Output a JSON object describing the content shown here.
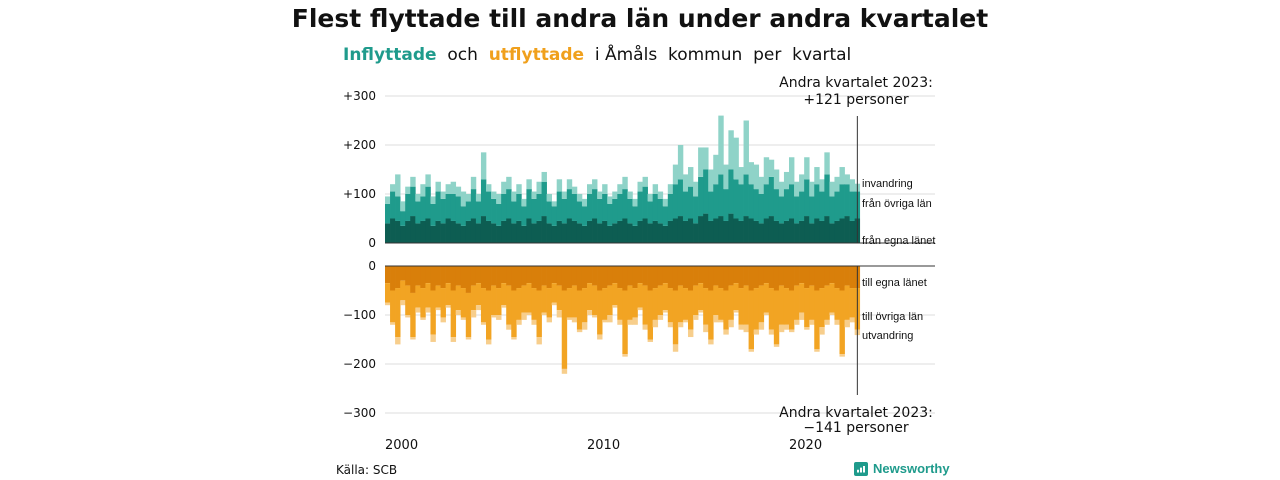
{
  "title": "Flest flyttade till andra län under andra kvartalet",
  "subtitle": {
    "in_word": "Inflyttade",
    "and_word": "och",
    "out_word": "utflyttade",
    "rest": "i Åmåls  kommun  per  kvartal"
  },
  "source": "Källa: SCB",
  "brand": "Newsworthy",
  "colors": {
    "in_local": "#0d5d52",
    "in_other": "#1f9b8c",
    "in_immigration": "#8fd3c8",
    "out_local": "#d97f0a",
    "out_other": "#f2a423",
    "out_emigration": "#f7ce8c",
    "grid": "#dddddd"
  },
  "chart_data": {
    "type": "bar",
    "stacked": true,
    "x_start": "2000 Q1",
    "x_end": "2023 Q2",
    "x_ticks": [
      "2000",
      "2010",
      "2020"
    ],
    "top_panel": {
      "y_ticks": [
        "+300",
        "+200",
        "+100",
        "0"
      ],
      "ylim": [
        0,
        300
      ],
      "series_labels": [
        "invandring",
        "från övriga län",
        "från egna länet"
      ],
      "annotation": [
        "Andra kvartalet 2023:",
        "+121 personer"
      ],
      "series": [
        {
          "name": "från egna länet",
          "values": [
            40,
            50,
            45,
            35,
            45,
            55,
            40,
            45,
            50,
            35,
            45,
            40,
            50,
            45,
            40,
            35,
            45,
            50,
            40,
            55,
            45,
            40,
            35,
            45,
            50,
            40,
            45,
            35,
            50,
            40,
            45,
            55,
            40,
            35,
            45,
            40,
            50,
            45,
            40,
            35,
            45,
            50,
            40,
            45,
            35,
            40,
            45,
            50,
            40,
            35,
            45,
            50,
            40,
            45,
            40,
            35,
            45,
            50,
            55,
            45,
            50,
            40,
            55,
            60,
            45,
            50,
            55,
            45,
            60,
            50,
            45,
            55,
            50,
            45,
            40,
            50,
            55,
            45,
            40,
            45,
            50,
            40,
            45,
            55,
            40,
            50,
            45,
            55,
            40,
            45,
            50,
            55,
            45,
            50
          ]
        },
        {
          "name": "från övriga län",
          "values": [
            40,
            55,
            50,
            30,
            55,
            60,
            45,
            50,
            65,
            45,
            60,
            50,
            50,
            55,
            55,
            40,
            40,
            60,
            45,
            75,
            60,
            50,
            45,
            55,
            60,
            45,
            55,
            40,
            60,
            50,
            55,
            70,
            45,
            40,
            60,
            50,
            60,
            55,
            45,
            40,
            55,
            60,
            50,
            55,
            45,
            50,
            55,
            60,
            50,
            40,
            60,
            65,
            45,
            55,
            50,
            40,
            55,
            70,
            75,
            60,
            65,
            55,
            80,
            90,
            60,
            70,
            85,
            65,
            90,
            80,
            75,
            85,
            70,
            65,
            60,
            70,
            80,
            65,
            55,
            65,
            70,
            55,
            60,
            75,
            55,
            70,
            60,
            85,
            55,
            60,
            70,
            65,
            60,
            55
          ]
        },
        {
          "name": "invandring",
          "values": [
            15,
            15,
            45,
            20,
            15,
            20,
            15,
            25,
            25,
            15,
            20,
            15,
            20,
            25,
            20,
            30,
            15,
            25,
            15,
            55,
            15,
            15,
            20,
            25,
            25,
            20,
            20,
            15,
            20,
            15,
            25,
            20,
            15,
            10,
            25,
            15,
            20,
            15,
            15,
            15,
            20,
            20,
            15,
            20,
            15,
            15,
            20,
            25,
            15,
            15,
            20,
            20,
            15,
            20,
            15,
            15,
            20,
            40,
            70,
            35,
            40,
            30,
            60,
            45,
            45,
            60,
            120,
            50,
            80,
            85,
            35,
            110,
            45,
            50,
            35,
            55,
            35,
            40,
            30,
            35,
            55,
            30,
            35,
            45,
            30,
            35,
            25,
            45,
            30,
            30,
            35,
            20,
            25,
            16
          ]
        }
      ]
    },
    "bottom_panel": {
      "y_ticks": [
        "0",
        "−100",
        "−200",
        "−300"
      ],
      "ylim": [
        -300,
        0
      ],
      "series_labels": [
        "till egna länet",
        "till övriga län",
        "utvandring"
      ],
      "annotation": [
        "Andra kvartalet 2023:",
        "−141 personer"
      ],
      "series": [
        {
          "name": "till egna länet",
          "values": [
            -35,
            -50,
            -45,
            -30,
            -40,
            -55,
            -40,
            -45,
            -35,
            -50,
            -40,
            -45,
            -35,
            -50,
            -40,
            -45,
            -55,
            -40,
            -35,
            -45,
            -50,
            -40,
            -45,
            -35,
            -40,
            -50,
            -45,
            -40,
            -35,
            -45,
            -50,
            -40,
            -45,
            -35,
            -40,
            -50,
            -45,
            -40,
            -50,
            -45,
            -35,
            -40,
            -50,
            -45,
            -40,
            -35,
            -45,
            -50,
            -40,
            -45,
            -35,
            -40,
            -50,
            -45,
            -40,
            -35,
            -45,
            -50,
            -40,
            -45,
            -50,
            -40,
            -35,
            -45,
            -50,
            -40,
            -45,
            -50,
            -40,
            -35,
            -45,
            -40,
            -50,
            -45,
            -40,
            -35,
            -45,
            -50,
            -40,
            -45,
            -50,
            -40,
            -35,
            -45,
            -40,
            -50,
            -45,
            -40,
            -35,
            -45,
            -50,
            -40,
            -45,
            -45
          ]
        },
        {
          "name": "till övriga län",
          "values": [
            -40,
            -65,
            -100,
            -40,
            -60,
            -90,
            -45,
            -60,
            -50,
            -90,
            -45,
            -60,
            -45,
            -95,
            -50,
            -60,
            -90,
            -50,
            -45,
            -70,
            -100,
            -60,
            -55,
            -45,
            -80,
            -95,
            -65,
            -55,
            -60,
            -65,
            -95,
            -55,
            -60,
            -40,
            -50,
            -160,
            -60,
            -65,
            -80,
            -70,
            -55,
            -60,
            -90,
            -65,
            -60,
            -45,
            -65,
            -130,
            -70,
            -60,
            -50,
            -80,
            -100,
            -65,
            -60,
            -55,
            -70,
            -110,
            -75,
            -65,
            -80,
            -60,
            -55,
            -75,
            -100,
            -60,
            -65,
            -80,
            -70,
            -55,
            -75,
            -80,
            -120,
            -85,
            -75,
            -60,
            -85,
            -110,
            -80,
            -75,
            -80,
            -70,
            -60,
            -80,
            -70,
            -120,
            -80,
            -70,
            -60,
            -65,
            -130,
            -70,
            -60,
            -85
          ]
        },
        {
          "name": "utvandring",
          "values": [
            -5,
            -5,
            -15,
            -10,
            -5,
            -5,
            -10,
            -5,
            -10,
            -15,
            -5,
            -10,
            -5,
            -10,
            -10,
            -5,
            -5,
            -15,
            -10,
            -5,
            -10,
            -5,
            -10,
            -5,
            -10,
            -5,
            -10,
            -15,
            -5,
            -10,
            -15,
            -5,
            -10,
            -5,
            -15,
            -10,
            -5,
            -10,
            -5,
            -15,
            -10,
            -5,
            -10,
            -5,
            -15,
            -5,
            -10,
            -5,
            -10,
            -15,
            -5,
            -10,
            -5,
            -15,
            -10,
            -5,
            -10,
            -15,
            -10,
            -5,
            -15,
            -10,
            -5,
            -15,
            -10,
            -15,
            -5,
            -10,
            -15,
            -5,
            -10,
            -15,
            -5,
            -10,
            -15,
            -5,
            -10,
            -5,
            -15,
            -10,
            -5,
            -10,
            -15,
            -5,
            -10,
            -5,
            -15,
            -10,
            -5,
            -10,
            -5,
            -15,
            -10,
            -11
          ]
        }
      ]
    }
  }
}
